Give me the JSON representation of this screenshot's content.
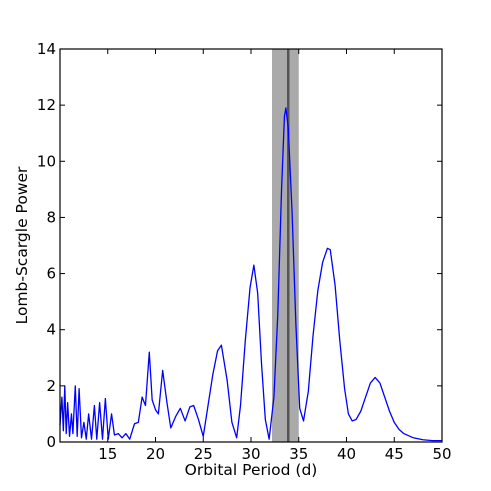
{
  "chart_data": {
    "type": "line",
    "title": "",
    "xlabel": "Orbital Period (d)",
    "ylabel": "Lomb-Scargle Power",
    "xlim": [
      10,
      50
    ],
    "ylim": [
      0,
      14
    ],
    "xticks": [
      15,
      20,
      25,
      30,
      35,
      40,
      45,
      50
    ],
    "yticks": [
      0,
      2,
      4,
      6,
      8,
      10,
      12,
      14
    ],
    "grid": false,
    "legend": "none",
    "series": [
      {
        "color": "#0000ff",
        "points": [
          [
            10.0,
            0.6
          ],
          [
            10.2,
            1.6
          ],
          [
            10.35,
            0.4
          ],
          [
            10.5,
            2.0
          ],
          [
            10.65,
            0.3
          ],
          [
            10.8,
            1.4
          ],
          [
            11.0,
            0.2
          ],
          [
            11.2,
            1.0
          ],
          [
            11.35,
            0.3
          ],
          [
            11.6,
            2.0
          ],
          [
            11.8,
            0.2
          ],
          [
            12.0,
            1.9
          ],
          [
            12.25,
            0.15
          ],
          [
            12.5,
            0.7
          ],
          [
            12.75,
            0.1
          ],
          [
            13.0,
            1.0
          ],
          [
            13.3,
            0.1
          ],
          [
            13.6,
            1.3
          ],
          [
            13.85,
            0.1
          ],
          [
            14.15,
            1.4
          ],
          [
            14.45,
            0.1
          ],
          [
            14.75,
            1.55
          ],
          [
            15.05,
            0.1
          ],
          [
            15.4,
            1.0
          ],
          [
            15.7,
            0.25
          ],
          [
            16.1,
            0.3
          ],
          [
            16.5,
            0.15
          ],
          [
            16.9,
            0.3
          ],
          [
            17.3,
            0.1
          ],
          [
            17.8,
            0.65
          ],
          [
            18.2,
            0.7
          ],
          [
            18.6,
            1.6
          ],
          [
            18.95,
            1.3
          ],
          [
            19.35,
            3.2
          ],
          [
            19.65,
            1.5
          ],
          [
            20.0,
            1.15
          ],
          [
            20.3,
            1.0
          ],
          [
            20.75,
            2.55
          ],
          [
            21.2,
            1.4
          ],
          [
            21.6,
            0.5
          ],
          [
            22.1,
            0.9
          ],
          [
            22.6,
            1.2
          ],
          [
            23.1,
            0.75
          ],
          [
            23.6,
            1.25
          ],
          [
            24.0,
            1.3
          ],
          [
            24.5,
            0.8
          ],
          [
            25.0,
            0.2
          ],
          [
            25.5,
            1.3
          ],
          [
            26.0,
            2.4
          ],
          [
            26.5,
            3.25
          ],
          [
            26.9,
            3.45
          ],
          [
            27.5,
            2.2
          ],
          [
            28.0,
            0.7
          ],
          [
            28.5,
            0.15
          ],
          [
            28.9,
            1.3
          ],
          [
            29.4,
            3.6
          ],
          [
            29.9,
            5.5
          ],
          [
            30.3,
            6.3
          ],
          [
            30.7,
            5.3
          ],
          [
            31.1,
            2.8
          ],
          [
            31.5,
            0.8
          ],
          [
            31.9,
            0.1
          ],
          [
            32.4,
            1.6
          ],
          [
            32.8,
            4.5
          ],
          [
            33.2,
            9.0
          ],
          [
            33.5,
            11.6
          ],
          [
            33.65,
            11.9
          ],
          [
            33.9,
            11.2
          ],
          [
            34.3,
            8.2
          ],
          [
            34.7,
            4.2
          ],
          [
            35.1,
            1.2
          ],
          [
            35.5,
            0.75
          ],
          [
            36.0,
            1.8
          ],
          [
            36.5,
            3.8
          ],
          [
            37.0,
            5.4
          ],
          [
            37.5,
            6.4
          ],
          [
            38.0,
            6.9
          ],
          [
            38.3,
            6.85
          ],
          [
            38.8,
            5.6
          ],
          [
            39.3,
            3.6
          ],
          [
            39.8,
            1.9
          ],
          [
            40.2,
            1.0
          ],
          [
            40.6,
            0.75
          ],
          [
            41.0,
            0.8
          ],
          [
            41.5,
            1.1
          ],
          [
            42.0,
            1.6
          ],
          [
            42.5,
            2.1
          ],
          [
            43.0,
            2.3
          ],
          [
            43.5,
            2.1
          ],
          [
            44.0,
            1.6
          ],
          [
            44.5,
            1.1
          ],
          [
            45.0,
            0.7
          ],
          [
            45.5,
            0.45
          ],
          [
            46.0,
            0.3
          ],
          [
            47.0,
            0.15
          ],
          [
            48.0,
            0.08
          ],
          [
            49.0,
            0.05
          ],
          [
            50.0,
            0.05
          ]
        ]
      }
    ],
    "marker": {
      "center": 33.9,
      "band": [
        32.2,
        35.0
      ],
      "line_color": "#555555",
      "band_color": "#aaaaaa"
    }
  }
}
